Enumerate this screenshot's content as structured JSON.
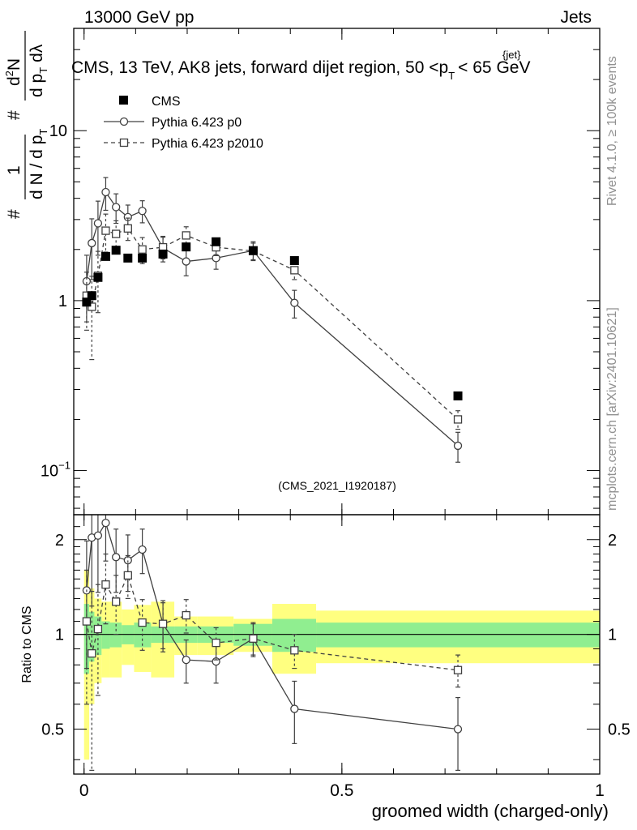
{
  "header": {
    "left": "13000 GeV pp",
    "right": "Jets"
  },
  "title": {
    "prefix": "CMS, 13 TeV, AK8 jets, forward dijet region, 50 <p",
    "sup": "{jet}",
    "sub": "T",
    "suffix": "< 65 GeV"
  },
  "side": {
    "rivet": "Rivet 4.1.0, ≥ 100k events",
    "mcplots": "mcplots.cern.ch [arXiv:2401.10621]"
  },
  "watermark": "(CMS_2021_I1920187)",
  "ylabel_top": {
    "num_hash": "#",
    "num_one": "1",
    "den": "d N / d p",
    "den_sub": "T",
    "num2": "#",
    "num3": "d",
    "num3_sup": "2",
    "num3_rest": "N",
    "den2": "d p",
    "den2_sub": "T",
    "den2_rest": "dλ"
  },
  "ylabel_bottom": "Ratio to CMS",
  "xlabel": "groomed width (charged-only)",
  "colors": {
    "band_outer": "#ffff80",
    "band_inner": "#90ee90",
    "data": "#000000",
    "mc": "#404040"
  },
  "chart_data": {
    "type": "line",
    "xlim": [
      -0.02,
      1.0
    ],
    "top": {
      "yscale": "log",
      "ylim": [
        0.055,
        40
      ],
      "yticks": [
        {
          "value": 10,
          "label": "10"
        },
        {
          "value": 1,
          "label": "1"
        },
        {
          "value": 0.1,
          "label": "10",
          "sup": "−1"
        }
      ]
    },
    "bottom": {
      "yscale": "log",
      "ylim": [
        0.36,
        2.4
      ],
      "yticks": [
        {
          "value": 2,
          "label": "2"
        },
        {
          "value": 1,
          "label": "1"
        },
        {
          "value": 0.5,
          "label": "0.5"
        }
      ]
    },
    "xticks": [
      {
        "value": 0,
        "label": "0"
      },
      {
        "value": 0.5,
        "label": "0.5"
      },
      {
        "value": 1,
        "label": "1"
      }
    ],
    "legend": [
      {
        "name": "CMS",
        "marker": "square-filled",
        "line": "none"
      },
      {
        "name": "Pythia 6.423 p0",
        "marker": "circle-open",
        "line": "solid"
      },
      {
        "name": "Pythia 6.423 p2010",
        "marker": "square-open",
        "line": "dashed"
      }
    ],
    "cms": {
      "x": [
        0.005,
        0.015,
        0.027,
        0.042,
        0.062,
        0.085,
        0.113,
        0.153,
        0.198,
        0.256,
        0.328,
        0.408,
        0.725
      ],
      "xlo": [
        0.0,
        0.01,
        0.02,
        0.034,
        0.05,
        0.073,
        0.097,
        0.13,
        0.175,
        0.22,
        0.29,
        0.365,
        0.45
      ],
      "xhi": [
        0.01,
        0.02,
        0.034,
        0.05,
        0.073,
        0.097,
        0.13,
        0.175,
        0.22,
        0.29,
        0.365,
        0.45,
        1.0
      ],
      "y": [
        0.98,
        1.07,
        1.37,
        1.82,
        1.98,
        1.78,
        1.78,
        1.88,
        2.07,
        2.22,
        1.97,
        1.72,
        0.275
      ],
      "ratio_inner": [
        0.25,
        0.18,
        0.14,
        0.1,
        0.09,
        0.07,
        0.09,
        0.06,
        0.06,
        0.06,
        0.08,
        0.12,
        0.09
      ],
      "ratio_outer": [
        0.6,
        0.4,
        0.3,
        0.27,
        0.27,
        0.2,
        0.24,
        0.27,
        0.14,
        0.14,
        0.12,
        0.25,
        0.19
      ]
    },
    "series": [
      {
        "name": "Pythia 6.423 p0",
        "x": [
          0.005,
          0.015,
          0.027,
          0.042,
          0.062,
          0.085,
          0.113,
          0.153,
          0.198,
          0.256,
          0.328,
          0.408,
          0.725
        ],
        "y": [
          1.3,
          2.18,
          2.85,
          4.35,
          3.55,
          3.1,
          3.37,
          2.04,
          1.7,
          1.78,
          1.97,
          0.97,
          0.14
        ],
        "err": [
          0.55,
          0.85,
          1.0,
          0.95,
          0.7,
          0.55,
          0.5,
          0.35,
          0.3,
          0.25,
          0.25,
          0.18,
          0.028
        ],
        "ratio": [
          1.38,
          2.03,
          2.06,
          2.26,
          1.76,
          1.72,
          1.86,
          1.08,
          0.83,
          0.82,
          0.97,
          0.58,
          0.5
        ],
        "ratio_err": [
          0.6,
          0.8,
          0.7,
          0.55,
          0.4,
          0.35,
          0.3,
          0.2,
          0.13,
          0.12,
          0.12,
          0.13,
          0.13
        ]
      },
      {
        "name": "Pythia 6.423 p2010",
        "x": [
          0.005,
          0.015,
          0.027,
          0.042,
          0.062,
          0.085,
          0.113,
          0.153,
          0.198,
          0.256,
          0.328,
          0.408,
          0.725
        ],
        "y": [
          1.07,
          0.92,
          1.4,
          2.58,
          2.47,
          2.66,
          2.0,
          2.06,
          2.42,
          2.06,
          1.96,
          1.51,
          0.2
        ],
        "err": [
          0.4,
          0.47,
          0.55,
          0.65,
          0.48,
          0.4,
          0.35,
          0.3,
          0.3,
          0.22,
          0.22,
          0.18,
          0.025
        ],
        "ratio": [
          1.1,
          0.87,
          1.04,
          1.44,
          1.27,
          1.54,
          1.09,
          1.08,
          1.15,
          0.94,
          0.97,
          0.89,
          0.77
        ],
        "ratio_err": [
          0.5,
          0.5,
          0.4,
          0.36,
          0.27,
          0.24,
          0.2,
          0.18,
          0.14,
          0.11,
          0.11,
          0.11,
          0.09
        ]
      }
    ]
  }
}
